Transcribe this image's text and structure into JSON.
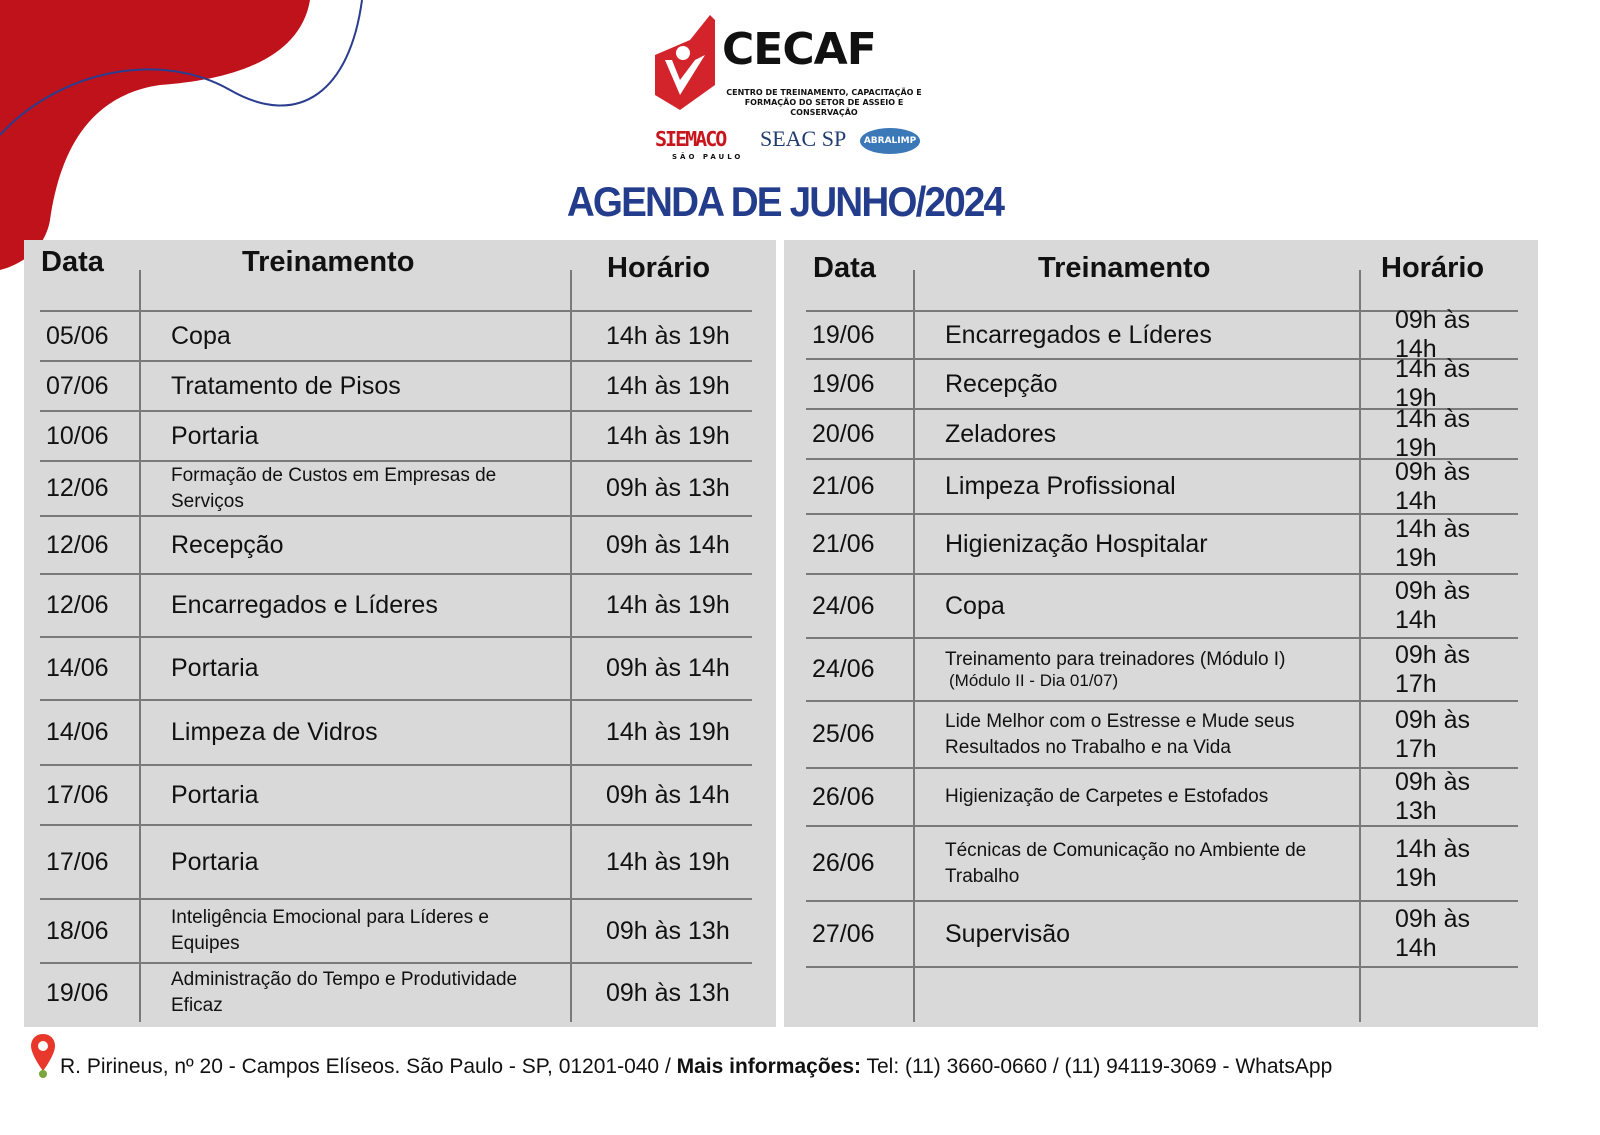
{
  "logo": {
    "name": "CECAF",
    "subtitle": "CENTRO DE TREINAMENTO, CAPACITAÇÃO E FORMAÇÃO DO SETOR DE ASSEIO E CONSERVAÇÃO"
  },
  "partners": [
    {
      "name": "SIEMACO",
      "sub": "SÃO PAULO"
    },
    {
      "name": "SEAC SP"
    },
    {
      "name": "ABRALIMP"
    }
  ],
  "title": "AGENDA DE JUNHO/2024",
  "headers": {
    "date": "Data",
    "training": "Treinamento",
    "time": "Horário"
  },
  "left": [
    {
      "date": "05/06",
      "training": "Copa",
      "time": "14h às 19h"
    },
    {
      "date": "07/06",
      "training": "Tratamento de Pisos",
      "time": "14h às 19h"
    },
    {
      "date": "10/06",
      "training": "Portaria",
      "time": "14h às 19h"
    },
    {
      "date": "12/06",
      "training": "Formação de Custos em Empresas de Serviços",
      "time": "09h às 13h",
      "small": true
    },
    {
      "date": "12/06",
      "training": "Recepção",
      "time": "09h às 14h"
    },
    {
      "date": "12/06",
      "training": "Encarregados e Líderes",
      "time": "14h às 19h"
    },
    {
      "date": "14/06",
      "training": "Portaria",
      "time": "09h às 14h"
    },
    {
      "date": "14/06",
      "training": "Limpeza de Vidros",
      "time": "14h às 19h"
    },
    {
      "date": "17/06",
      "training": "Portaria",
      "time": "09h às 14h"
    },
    {
      "date": "17/06",
      "training": "Portaria",
      "time": "14h às 19h"
    },
    {
      "date": "18/06",
      "training": "Inteligência Emocional para Líderes e Equipes",
      "time": "09h às 13h",
      "small": true
    },
    {
      "date": "19/06",
      "training": "Administração do Tempo e Produtividade Eficaz",
      "time": "09h às 13h",
      "small": true
    }
  ],
  "right": [
    {
      "date": "19/06",
      "training": "Encarregados e Líderes",
      "time": "09h às 14h"
    },
    {
      "date": "19/06",
      "training": "Recepção",
      "time": "14h às 19h"
    },
    {
      "date": "20/06",
      "training": "Zeladores",
      "time": "14h às 19h"
    },
    {
      "date": "21/06",
      "training": "Limpeza Profissional",
      "time": "09h às 14h"
    },
    {
      "date": "21/06",
      "training": "Higienização Hospitalar",
      "time": "14h às 19h"
    },
    {
      "date": "24/06",
      "training": "Copa",
      "time": "09h às 14h"
    },
    {
      "date": "24/06",
      "training": "Treinamento para treinadores (Módulo I)",
      "note": "(Módulo II - Dia 01/07)",
      "time": "09h às 17h",
      "small": true
    },
    {
      "date": "25/06",
      "training": "Lide Melhor com o Estresse e Mude seus Resultados no Trabalho e na Vida",
      "time": "09h às 17h",
      "small": true
    },
    {
      "date": "26/06",
      "training": "Higienização de Carpetes e Estofados",
      "time": "09h às 13h",
      "small": true
    },
    {
      "date": "26/06",
      "training": "Técnicas de Comunicação no Ambiente de Trabalho",
      "time": "14h às 19h",
      "small": true
    },
    {
      "date": "27/06",
      "training": "Supervisão",
      "time": "09h às 14h"
    },
    {
      "date": "",
      "training": "",
      "time": ""
    }
  ],
  "footer": {
    "address": "R. Pirineus, nº 20 - Campos Elíseos. São Paulo - SP, 01201-040 / ",
    "more_label": "Mais informações:",
    "contact": " Tel: (11) 3660-0660 / (11) 94119-3069 - WhatsApp"
  },
  "colors": {
    "title": "#233c8c",
    "accent_red": "#c8161d",
    "panel": "#d9d9d9"
  }
}
